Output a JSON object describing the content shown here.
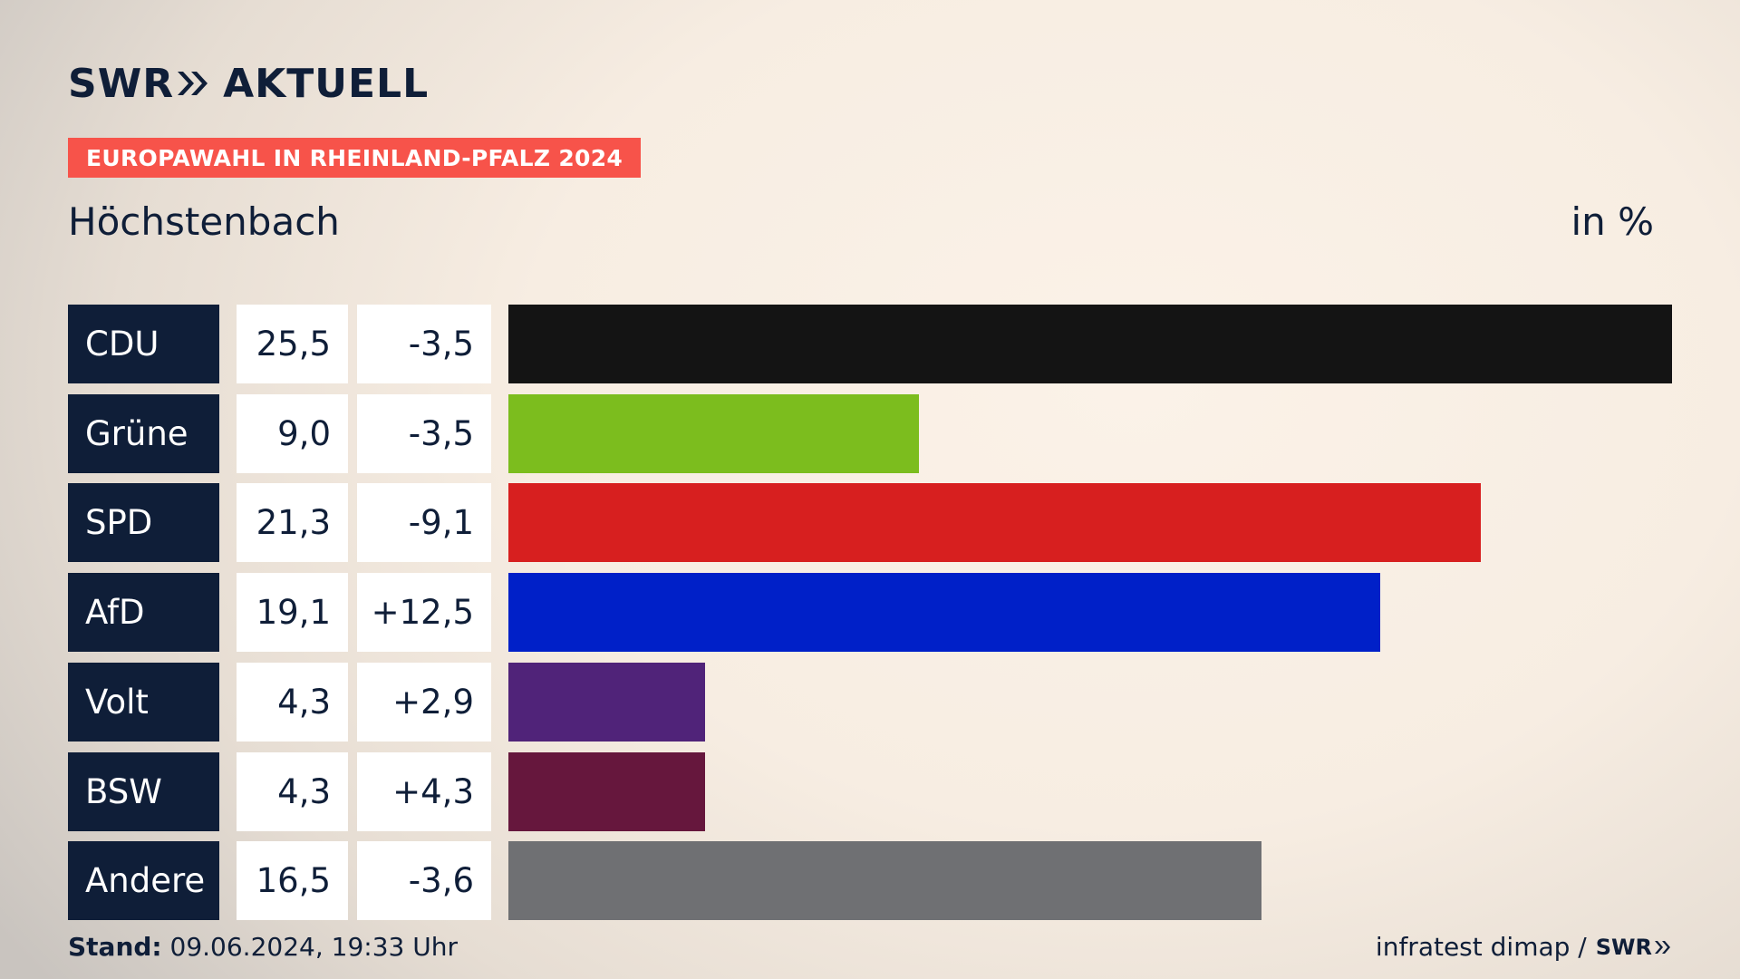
{
  "header": {
    "logo_swr": "SWR",
    "logo_aktuell": "AKTUELL",
    "badge": "EUROPAWAHL IN RHEINLAND-PFALZ 2024",
    "title": "Höchstenbach",
    "unit": "in %"
  },
  "chart_data": {
    "type": "bar",
    "orientation": "horizontal",
    "categories": [
      "CDU",
      "Grüne",
      "SPD",
      "AfD",
      "Volt",
      "BSW",
      "Andere"
    ],
    "values": [
      25.5,
      9.0,
      21.3,
      19.1,
      4.3,
      4.3,
      16.5
    ],
    "changes": [
      -3.5,
      -3.5,
      -9.1,
      12.5,
      2.9,
      4.3,
      -3.6
    ],
    "value_labels": [
      "25,5",
      "9,0",
      "21,3",
      "19,1",
      "4,3",
      "4,3",
      "16,5"
    ],
    "change_labels": [
      "-3,5",
      "-3,5",
      "-9,1",
      "+12,5",
      "+2,9",
      "+4,3",
      "-3,6"
    ],
    "colors": [
      "#141414",
      "#7cbd1e",
      "#d71f1f",
      "#0020c8",
      "#502379",
      "#66173d",
      "#6f7073"
    ],
    "xlim": [
      0,
      25.5
    ],
    "grid": false,
    "legend": "none"
  },
  "footer": {
    "stand_label": "Stand:",
    "stand_value": " 09.06.2024, 19:33 Uhr",
    "source": "infratest dimap /",
    "source_logo": "SWR"
  },
  "colors": {
    "navy": "#0f1e38",
    "badge": "#f7534a"
  }
}
